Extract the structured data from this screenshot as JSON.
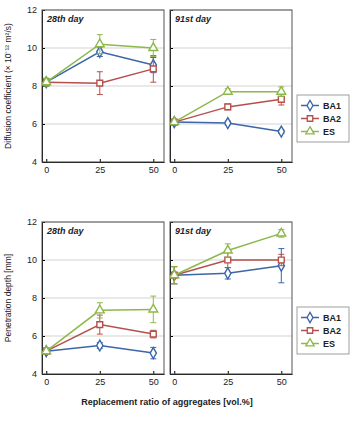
{
  "chart_data": [
    {
      "type": "line",
      "title": "28th day",
      "ylabel": "Diffusion coefficient (× 10⁻¹² m²/s)",
      "x": [
        0,
        25,
        50
      ],
      "xlim": [
        -2,
        55
      ],
      "xticks": [
        0,
        25,
        50
      ],
      "ylim": [
        4,
        12
      ],
      "yticks": [
        4,
        6,
        8,
        10,
        12
      ],
      "grid": true,
      "series": [
        {
          "color": "#3b66a8",
          "marker": "diamond",
          "values": [
            8.2,
            9.8,
            9.1
          ],
          "errors": [
            0.2,
            0.25,
            0.4
          ]
        },
        {
          "color": "#b5504a",
          "marker": "square",
          "values": [
            8.2,
            8.15,
            8.9
          ],
          "errors": [
            0.2,
            0.6,
            0.7
          ]
        },
        {
          "color": "#8db84a",
          "marker": "triangle",
          "values": [
            8.2,
            10.2,
            10.0
          ],
          "errors": [
            0.2,
            0.5,
            0.45
          ]
        }
      ]
    },
    {
      "type": "line",
      "title": "91st day",
      "x": [
        0,
        25,
        50
      ],
      "xlim": [
        -2,
        55
      ],
      "xticks": [
        0,
        25,
        50
      ],
      "ylim": [
        4,
        12
      ],
      "yticks": [
        4,
        6,
        8,
        10,
        12
      ],
      "grid": true,
      "tick_labels": "x",
      "legend": "right",
      "series": [
        {
          "name": "BA1",
          "color": "#3b66a8",
          "marker": "diamond",
          "values": [
            6.1,
            6.05,
            5.6
          ],
          "errors": [
            0.1,
            0.1,
            0.1
          ]
        },
        {
          "name": "BA2",
          "color": "#b5504a",
          "marker": "square",
          "values": [
            6.1,
            6.9,
            7.3
          ],
          "errors": [
            0.1,
            0.15,
            0.3
          ]
        },
        {
          "name": "ES",
          "color": "#8db84a",
          "marker": "triangle",
          "values": [
            6.1,
            7.7,
            7.7
          ],
          "errors": [
            0.1,
            0.15,
            0.25
          ]
        }
      ]
    },
    {
      "type": "line",
      "title": "28th day",
      "xlabel": "Replacement ratio of aggregates [vol.%]",
      "ylabel": "Penetration depth [mm]",
      "x": [
        0,
        25,
        50
      ],
      "xlim": [
        -2,
        55
      ],
      "xticks": [
        0,
        25,
        50
      ],
      "ylim": [
        4,
        12
      ],
      "yticks": [
        4,
        6,
        8,
        10,
        12
      ],
      "grid": true,
      "series": [
        {
          "color": "#3b66a8",
          "marker": "diamond",
          "values": [
            5.2,
            5.5,
            5.1
          ],
          "errors": [
            0.15,
            0.15,
            0.3
          ]
        },
        {
          "color": "#b5504a",
          "marker": "square",
          "values": [
            5.2,
            6.6,
            6.1
          ],
          "errors": [
            0.15,
            0.5,
            0.2
          ]
        },
        {
          "color": "#8db84a",
          "marker": "triangle",
          "values": [
            5.2,
            7.35,
            7.4
          ],
          "errors": [
            0.15,
            0.4,
            0.7
          ]
        }
      ]
    },
    {
      "type": "line",
      "title": "91st day",
      "x": [
        0,
        25,
        50
      ],
      "xlim": [
        -2,
        55
      ],
      "xticks": [
        0,
        25,
        50
      ],
      "ylim": [
        4,
        12
      ],
      "yticks": [
        4,
        6,
        8,
        10,
        12
      ],
      "grid": true,
      "tick_labels": "x",
      "legend": "right",
      "series": [
        {
          "name": "BA1",
          "color": "#3b66a8",
          "marker": "diamond",
          "values": [
            9.2,
            9.3,
            9.7
          ],
          "errors": [
            0.45,
            0.3,
            0.9
          ]
        },
        {
          "name": "BA2",
          "color": "#b5504a",
          "marker": "square",
          "values": [
            9.2,
            10.0,
            10.0
          ],
          "errors": [
            0.45,
            0.4,
            0.3
          ]
        },
        {
          "name": "ES",
          "color": "#8db84a",
          "marker": "triangle",
          "values": [
            9.2,
            10.5,
            11.4
          ],
          "errors": [
            0.45,
            0.35,
            0.2
          ]
        }
      ]
    }
  ]
}
